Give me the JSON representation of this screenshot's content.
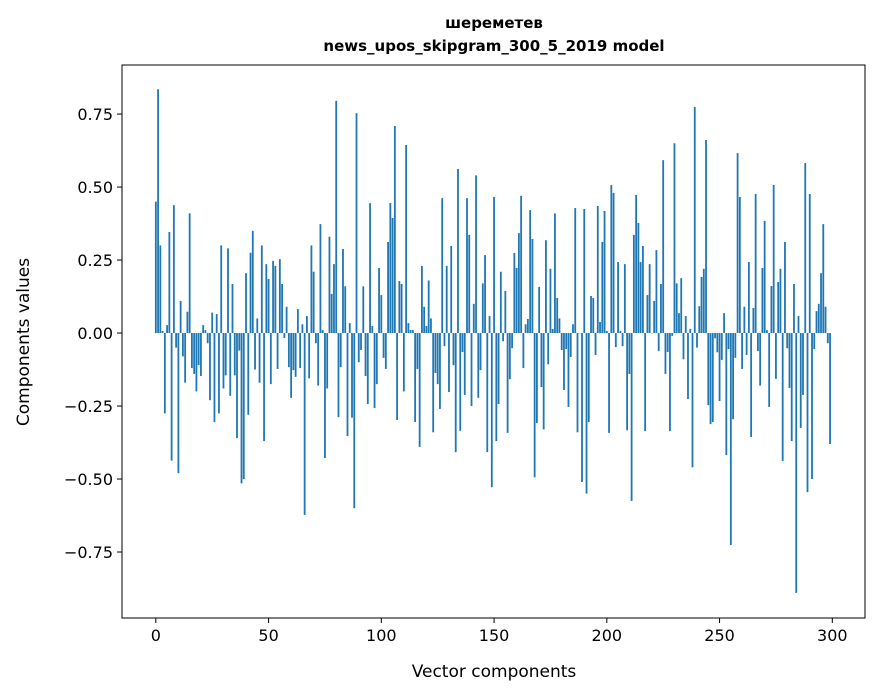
{
  "chart_data": {
    "type": "bar",
    "title": [
      "шереметев",
      "news_upos_skipgram_300_5_2019 model"
    ],
    "xlabel": "Vector components",
    "ylabel": "Components values",
    "xlim": [
      -15,
      314.5
    ],
    "ylim": [
      -0.976,
      0.918
    ],
    "xticks": [
      0,
      50,
      100,
      150,
      200,
      250,
      300
    ],
    "xtick_labels": [
      "0",
      "50",
      "100",
      "150",
      "200",
      "250",
      "300"
    ],
    "yticks": [
      -0.75,
      -0.5,
      -0.25,
      0,
      0.25,
      0.5,
      0.75
    ],
    "ytick_labels": [
      "−0.75",
      "−0.50",
      "−0.25",
      "0.00",
      "0.25",
      "0.50",
      "0.75"
    ],
    "grid": false,
    "bar_color": "#1f77b4",
    "values": [
      0.45,
      0.835,
      0.3,
      0.007,
      -0.275,
      0.027,
      0.346,
      -0.437,
      0.438,
      -0.05,
      -0.48,
      0.11,
      -0.08,
      -0.17,
      0.073,
      0.41,
      -0.12,
      -0.14,
      -0.2,
      -0.11,
      -0.147,
      0.027,
      0.01,
      -0.035,
      -0.23,
      0.07,
      -0.305,
      0.065,
      -0.275,
      0.3,
      -0.19,
      -0.145,
      0.29,
      -0.215,
      0.168,
      -0.145,
      -0.36,
      -0.06,
      -0.515,
      -0.5,
      0.205,
      -0.28,
      0.275,
      0.35,
      -0.125,
      0.05,
      -0.17,
      0.3,
      -0.37,
      0.236,
      0.185,
      -0.175,
      0.247,
      0.23,
      -0.123,
      0.253,
      0.168,
      -0.017,
      0.09,
      -0.117,
      -0.222,
      -0.127,
      -0.15,
      0.082,
      -0.12,
      0.03,
      -0.623,
      0.058,
      -0.155,
      0.3,
      0.21,
      -0.035,
      -0.18,
      0.373,
      0.01,
      -0.428,
      -0.19,
      0.33,
      0.134,
      0.236,
      0.795,
      -0.288,
      -0.117,
      0.288,
      0.16,
      -0.353,
      0.034,
      -0.29,
      -0.6,
      0.753,
      -0.1,
      -0.058,
      0.16,
      -0.147,
      -0.243,
      0.445,
      0.024,
      -0.257,
      -0.175,
      0.223,
      0.13,
      -0.085,
      -0.123,
      0.312,
      0.445,
      0.394,
      0.709,
      -0.298,
      0.178,
      0.168,
      -0.2,
      0.644,
      0.034,
      0.01,
      0.01,
      -0.305,
      -0.123,
      -0.39,
      0.23,
      0.09,
      0.024,
      0.18,
      0.05,
      -0.34,
      -0.137,
      -0.175,
      -0.26,
      0.462,
      -0.045,
      0.23,
      -0.202,
      0.298,
      -0.11,
      -0.408,
      0.562,
      -0.335,
      -0.065,
      -0.212,
      0.462,
      0.336,
      -0.25,
      0.1,
      0.54,
      -0.222,
      -0.127,
      0.17,
      0.267,
      -0.408,
      0.058,
      -0.528,
      0.466,
      -0.37,
      -0.243,
      0.21,
      -0.028,
      0.144,
      -0.342,
      -0.158,
      -0.052,
      0.274,
      0.223,
      0.342,
      0.47,
      -0.12,
      0.03,
      0.048,
      0.421,
      0.322,
      -0.494,
      -0.308,
      0.158,
      -0.185,
      -0.33,
      0.318,
      -0.107,
      0.22,
      0.014,
      0.41,
      0.12,
      0.05,
      -0.058,
      -0.195,
      -0.055,
      -0.253,
      -0.082,
      0.03,
      0.428,
      -0.34,
      0.0,
      -0.51,
      0.425,
      -0.55,
      -0.305,
      0.127,
      0.12,
      -0.075,
      0.435,
      0.038,
      0.312,
      0.418,
      0.007,
      -0.342,
      0.507,
      0.48,
      -0.048,
      0.243,
      0.007,
      -0.045,
      0.236,
      -0.333,
      -0.14,
      -0.575,
      0.336,
      0.473,
      0.377,
      0.243,
      0.298,
      -0.336,
      0.13,
      0.236,
      0.0,
      0.11,
      0.284,
      -0.062,
      0.168,
      0.592,
      -0.14,
      -0.065,
      -0.336,
      -0.01,
      0.65,
      0.17,
      0.068,
      0.188,
      -0.09,
      0.058,
      -0.226,
      0.014,
      -0.46,
      0.774,
      -0.05,
      0.092,
      0.192,
      0.22,
      0.661,
      -0.247,
      -0.312,
      -0.305,
      -0.018,
      -0.066,
      -0.233,
      -0.092,
      0.068,
      -0.418,
      -0.055,
      -0.726,
      -0.295,
      -0.085,
      0.616,
      0.466,
      -0.123,
      0.09,
      -0.075,
      0.243,
      -0.356,
      0.086,
      0.476,
      -0.062,
      -0.18,
      0.223,
      0.384,
      0.01,
      -0.253,
      0.161,
      0.507,
      -0.157,
      0.175,
      0.22,
      -0.438,
      0.312,
      -0.052,
      -0.188,
      -0.37,
      0.168,
      -0.89,
      0.058,
      -0.325,
      -0.212,
      0.582,
      -0.545,
      0.476,
      -0.5,
      -0.055,
      0.075,
      0.1,
      0.205,
      0.373,
      0.09,
      -0.035,
      -0.38
    ]
  }
}
